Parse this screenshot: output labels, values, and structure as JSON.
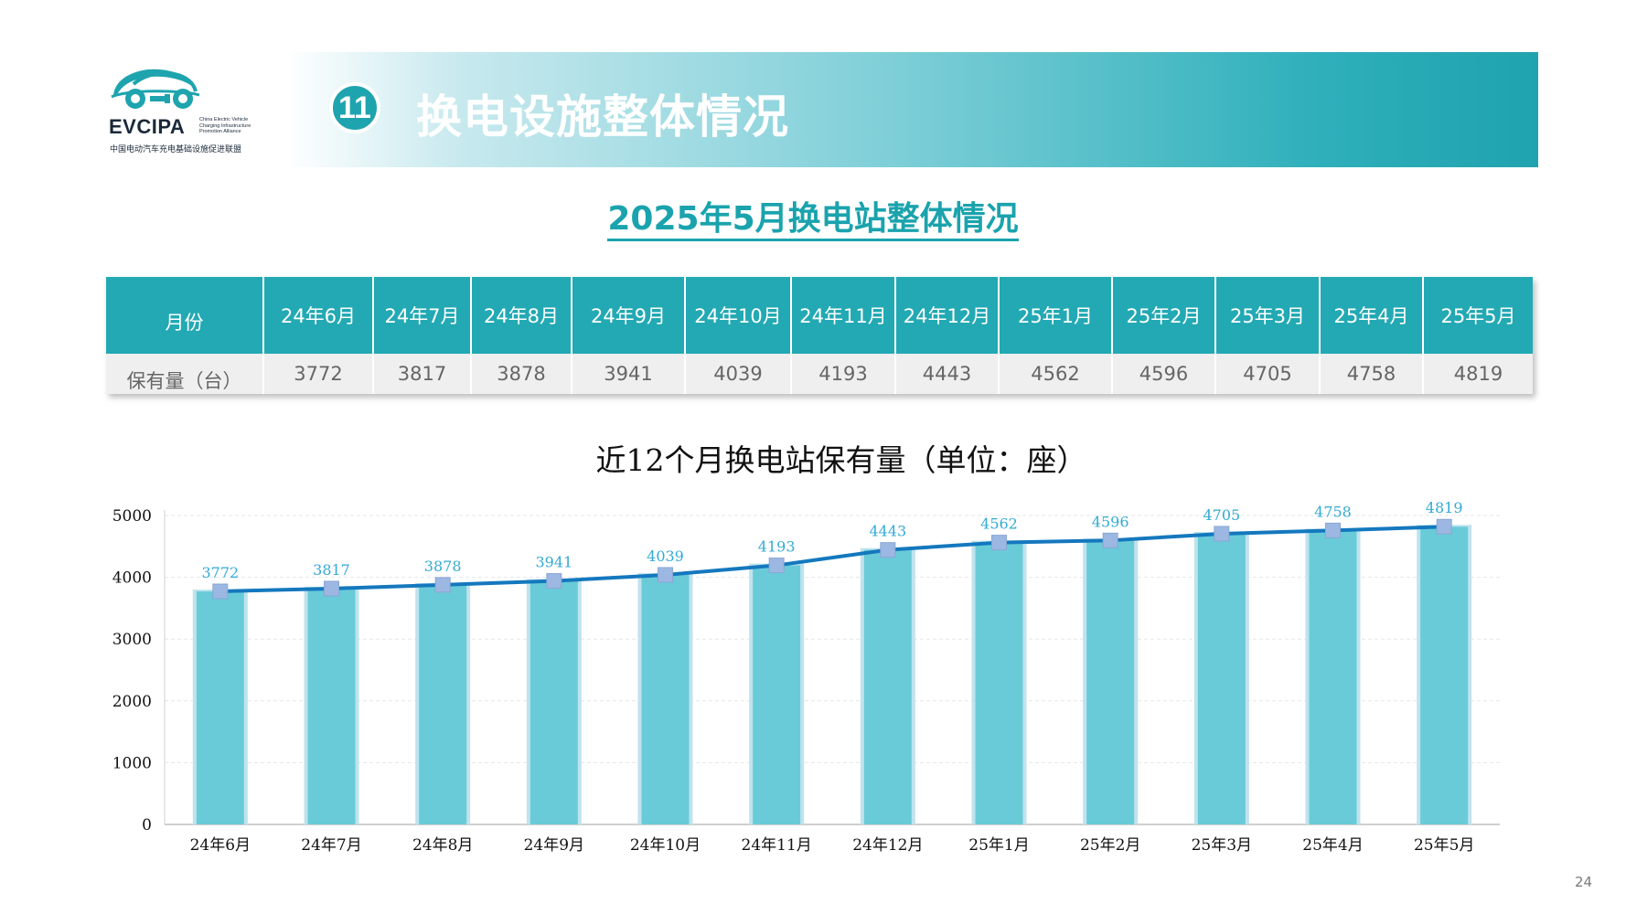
{
  "logo": {
    "name": "EVCIPA",
    "en_lines": [
      "China Electric Vehicle",
      "Charging Infrastructure",
      "Promotion Alliance"
    ],
    "cn": "中国电动汽车充电基础设施促进联盟"
  },
  "banner": {
    "number": "11",
    "title": "换电设施整体情况"
  },
  "subtitle": "2025年5月换电站整体情况",
  "table": {
    "row_header": "月份",
    "value_header": "保有量（台）",
    "months": [
      "24年6月",
      "24年7月",
      "24年8月",
      "24年9月",
      "24年10月",
      "24年11月",
      "24年12月",
      "25年1月",
      "25年2月",
      "25年3月",
      "25年4月",
      "25年5月"
    ],
    "values": [
      "3772",
      "3817",
      "3878",
      "3941",
      "4039",
      "4193",
      "4443",
      "4562",
      "4596",
      "4705",
      "4758",
      "4819"
    ]
  },
  "chart_data": {
    "type": "bar",
    "title": "近12个月换电站保有量（单位：座）",
    "categories": [
      "24年6月",
      "24年7月",
      "24年8月",
      "24年9月",
      "24年10月",
      "24年11月",
      "24年12月",
      "25年1月",
      "25年2月",
      "25年3月",
      "25年4月",
      "25年5月"
    ],
    "values": [
      3772,
      3817,
      3878,
      3941,
      4039,
      4193,
      4443,
      4562,
      4596,
      4705,
      4758,
      4819
    ],
    "overlay": "line",
    "ylim": [
      0,
      5000
    ],
    "yticks": [
      0,
      1000,
      2000,
      3000,
      4000,
      5000
    ],
    "grid": true,
    "legend": "none",
    "colors": {
      "bar": "#69cbd8",
      "bar_edge": "#bfe3ee",
      "line": "#1478be",
      "marker": "#9cb8e2",
      "label": "#33aad4"
    }
  },
  "page_number": "24"
}
